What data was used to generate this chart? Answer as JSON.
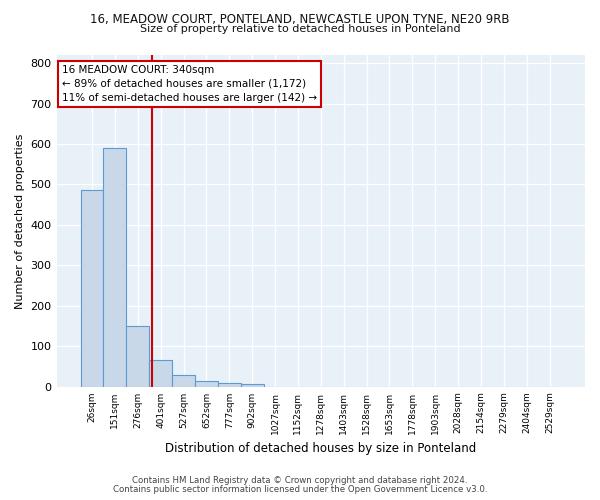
{
  "title1": "16, MEADOW COURT, PONTELAND, NEWCASTLE UPON TYNE, NE20 9RB",
  "title2": "Size of property relative to detached houses in Ponteland",
  "xlabel": "Distribution of detached houses by size in Ponteland",
  "ylabel": "Number of detached properties",
  "bar_color": "#c8d8e8",
  "bar_edgecolor": "#5b9bd5",
  "bg_color": "#e8f0f8",
  "grid_color": "#ffffff",
  "categories": [
    "26sqm",
    "151sqm",
    "276sqm",
    "401sqm",
    "527sqm",
    "652sqm",
    "777sqm",
    "902sqm",
    "1027sqm",
    "1152sqm",
    "1278sqm",
    "1403sqm",
    "1528sqm",
    "1653sqm",
    "1778sqm",
    "1903sqm",
    "2028sqm",
    "2154sqm",
    "2279sqm",
    "2404sqm",
    "2529sqm"
  ],
  "values": [
    487,
    590,
    150,
    65,
    28,
    15,
    8,
    7,
    0,
    0,
    0,
    0,
    0,
    0,
    0,
    0,
    0,
    0,
    0,
    0,
    0
  ],
  "red_line_x": 2.62,
  "annotation_text": "16 MEADOW COURT: 340sqm\n← 89% of detached houses are smaller (1,172)\n11% of semi-detached houses are larger (142) →",
  "annotation_box_color": "#ffffff",
  "annotation_border_color": "#cc0000",
  "ylim": [
    0,
    820
  ],
  "yticks": [
    0,
    100,
    200,
    300,
    400,
    500,
    600,
    700,
    800
  ],
  "footer1": "Contains HM Land Registry data © Crown copyright and database right 2024.",
  "footer2": "Contains public sector information licensed under the Open Government Licence v3.0."
}
